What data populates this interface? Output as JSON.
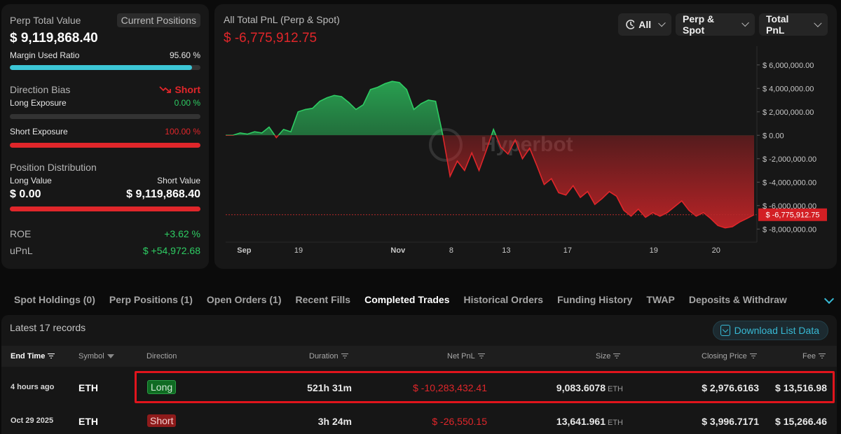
{
  "summary": {
    "perp_total_value_label": "Perp Total Value",
    "current_positions_tag": "Current Positions",
    "perp_total_value": "$ 9,119,868.40",
    "margin_used_ratio_label": "Margin Used Ratio",
    "margin_used_ratio": "95.60 %",
    "margin_used_fraction": 0.956,
    "direction_bias_label": "Direction Bias",
    "direction_bias_value": "Short",
    "long_exposure_label": "Long Exposure",
    "long_exposure_value": "0.00 %",
    "long_exposure_fraction": 0.0,
    "short_exposure_label": "Short Exposure",
    "short_exposure_value": "100.00 %",
    "short_exposure_fraction": 1.0,
    "position_distribution_label": "Position Distribution",
    "long_value_label": "Long Value",
    "short_value_label": "Short Value",
    "long_value": "$ 0.00",
    "short_value": "$ 9,119,868.40",
    "roe_label": "ROE",
    "roe_value": "+3.62 %",
    "upnl_label": "uPnL",
    "upnl_value": "$ +54,972.68"
  },
  "chart_panel": {
    "title": "All Total PnL (Perp & Spot)",
    "total_value": "$ -6,775,912.75",
    "filters": {
      "range": "All",
      "scope": "Perp & Spot",
      "metric": "Total PnL"
    },
    "watermark": "Hyperbot",
    "current_value_label": "$ -6,775,912.75"
  },
  "chart_data": {
    "type": "area",
    "title": "",
    "xlabel": "",
    "ylabel": "",
    "x_tick_labels": [
      "Sep",
      "19",
      "Nov",
      "8",
      "13",
      "17",
      "19",
      "20"
    ],
    "y_tick_labels": [
      "$ 6,000,000.00",
      "$ 4,000,000.00",
      "$ 2,000,000.00",
      "$ 0.00",
      "$ -2,000,000.00",
      "$ -4,000,000.00",
      "$ -6,000,000.00",
      "$ -8,000,000.00"
    ],
    "ylim": [
      -9000000,
      7000000
    ],
    "positive_color": "#2ecc63",
    "negative_color": "#e0262a",
    "reference_line": -6775912.75,
    "series": [
      {
        "values": [
          0,
          0,
          200000,
          100000,
          300000,
          200000,
          700000,
          -200000,
          500000,
          300000,
          2000000,
          2200000,
          2300000,
          2900000,
          3200000,
          3400000,
          3300000,
          2800000,
          2200000,
          2600000,
          3900000,
          4100000,
          4400000,
          4600000,
          4500000,
          3900000,
          2200000,
          2700000,
          3000000,
          2900000,
          0,
          -3500000,
          -2200000,
          -3000000,
          -1500000,
          -3000000,
          -1300000,
          500000,
          -1000000,
          -1600000,
          -400000,
          -2000000,
          -1100000,
          -2600000,
          -4200000,
          -3700000,
          -4900000,
          -5100000,
          -4300000,
          -5300000,
          -4800000,
          -5900000,
          -5400000,
          -4800000,
          -5200000,
          -6400000,
          -6900000,
          -6300000,
          -7000000,
          -6600000,
          -6900000,
          -6600000,
          -6100000,
          -5600000,
          -6400000,
          -6900000,
          -6600000,
          -7100000,
          -7700000,
          -7900000,
          -7800000,
          -7400000,
          -7100000,
          -6776000
        ]
      }
    ]
  },
  "tabs": [
    {
      "label": "Spot Holdings (0)",
      "active": false
    },
    {
      "label": "Perp Positions (1)",
      "active": false
    },
    {
      "label": "Open Orders (1)",
      "active": false
    },
    {
      "label": "Recent Fills",
      "active": false
    },
    {
      "label": "Completed Trades",
      "active": true
    },
    {
      "label": "Historical Orders",
      "active": false
    },
    {
      "label": "Funding History",
      "active": false
    },
    {
      "label": "TWAP",
      "active": false
    },
    {
      "label": "Deposits & Withdraw",
      "active": false
    }
  ],
  "table": {
    "records_text": "Latest 17 records",
    "download_label": "Download List Data",
    "headers": {
      "end_time": "End Time",
      "symbol": "Symbol",
      "direction": "Direction",
      "duration": "Duration",
      "net_pnl": "Net PnL",
      "size": "Size",
      "closing_price": "Closing Price",
      "fee": "Fee"
    },
    "rows": [
      {
        "end_time": "4 hours ago",
        "symbol": "ETH",
        "direction": "Long",
        "duration": "521h 31m",
        "net_pnl": "$ -10,283,432.41",
        "size": "9,083.6078",
        "size_unit": "ETH",
        "closing_price": "$ 2,976.6163",
        "fee": "$ 13,516.98"
      },
      {
        "end_time": "Oct 29 2025",
        "symbol": "ETH",
        "direction": "Short",
        "duration": "3h 24m",
        "net_pnl": "$ -26,550.15",
        "size": "13,641.961",
        "size_unit": "ETH",
        "closing_price": "$ 3,996.7171",
        "fee": "$ 15,266.46"
      }
    ]
  }
}
